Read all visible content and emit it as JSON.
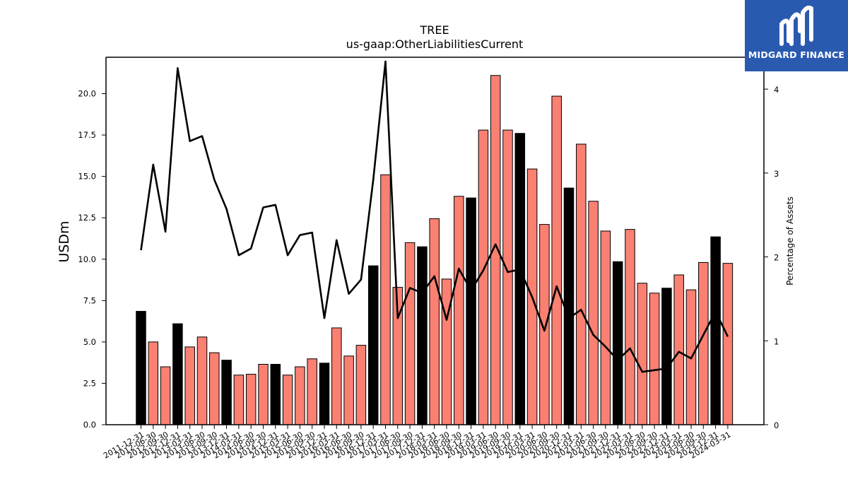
{
  "chart_data": {
    "type": "bar",
    "title": "TREE",
    "subtitle": "us-gaap:OtherLiabilitiesCurrent",
    "ylabel": "USDm",
    "ylabel_right": "Percentage of Assets",
    "ylim": [
      0,
      22.2
    ],
    "ylim_right": [
      0,
      4.38
    ],
    "yticks": [
      0.0,
      2.5,
      5.0,
      7.5,
      10.0,
      12.5,
      15.0,
      17.5,
      20.0
    ],
    "yticks_right": [
      0,
      1,
      2,
      3,
      4
    ],
    "grid": false,
    "categories": [
      "2011-12-31",
      "2012-06-30",
      "2012-09-30",
      "2012-12-31",
      "2013-03-31",
      "2013-06-30",
      "2013-09-30",
      "2013-12-31",
      "2014-03-31",
      "2014-06-30",
      "2014-09-30",
      "2014-12-31",
      "2015-03-31",
      "2015-06-30",
      "2015-09-30",
      "2015-12-31",
      "2016-03-31",
      "2016-06-30",
      "2016-09-30",
      "2016-12-31",
      "2017-03-31",
      "2017-06-30",
      "2017-09-30",
      "2017-12-31",
      "2018-03-31",
      "2018-06-30",
      "2018-09-30",
      "2018-12-31",
      "2019-03-31",
      "2019-06-30",
      "2019-09-30",
      "2019-12-31",
      "2020-03-31",
      "2020-06-30",
      "2020-09-30",
      "2020-12-31",
      "2021-03-31",
      "2021-06-30",
      "2021-09-30",
      "2021-12-31",
      "2022-03-31",
      "2022-06-30",
      "2022-09-30",
      "2022-12-31",
      "2023-03-31",
      "2023-06-30",
      "2023-09-30",
      "2023-12-31",
      "2024-03-31"
    ],
    "series": [
      {
        "kind": "bar",
        "values": [
          6.85,
          5.0,
          3.5,
          6.1,
          4.7,
          5.3,
          4.35,
          3.9,
          3.0,
          3.05,
          3.65,
          3.65,
          3.0,
          3.5,
          3.98,
          3.72,
          5.85,
          4.15,
          4.8,
          9.6,
          15.1,
          8.3,
          11.0,
          10.75,
          12.45,
          8.8,
          13.8,
          13.7,
          17.8,
          21.1,
          17.8,
          17.6,
          15.45,
          12.1,
          19.85,
          14.3,
          16.95,
          13.5,
          11.7,
          9.85,
          11.8,
          8.55,
          7.95,
          8.25,
          9.05,
          8.15,
          9.8,
          11.35,
          9.75
        ],
        "year_end": [
          true,
          false,
          false,
          true,
          false,
          false,
          false,
          true,
          false,
          false,
          false,
          true,
          false,
          false,
          false,
          true,
          false,
          false,
          false,
          true,
          false,
          false,
          false,
          true,
          false,
          false,
          false,
          true,
          false,
          false,
          false,
          true,
          false,
          false,
          false,
          true,
          false,
          false,
          false,
          true,
          false,
          false,
          false,
          true,
          false,
          false,
          false,
          true,
          false
        ]
      },
      {
        "kind": "line",
        "axis": "right",
        "values": [
          2.08,
          3.1,
          2.3,
          4.25,
          3.38,
          3.44,
          2.92,
          2.57,
          2.02,
          2.1,
          2.59,
          2.62,
          2.02,
          2.26,
          2.29,
          1.27,
          2.2,
          1.56,
          1.73,
          2.92,
          4.33,
          1.27,
          1.63,
          1.57,
          1.77,
          1.25,
          1.86,
          1.6,
          1.84,
          2.15,
          1.82,
          1.85,
          1.52,
          1.12,
          1.65,
          1.27,
          1.37,
          1.07,
          0.93,
          0.77,
          0.91,
          0.63,
          0.65,
          0.67,
          0.87,
          0.79,
          1.07,
          1.35,
          1.05
        ]
      }
    ],
    "colors": {
      "bar": "#fa8072",
      "bar_year_end": "#000000",
      "line": "#000000"
    }
  },
  "logo": {
    "text": "MIDGARD FINANCE",
    "color": "#2a5ab0"
  }
}
